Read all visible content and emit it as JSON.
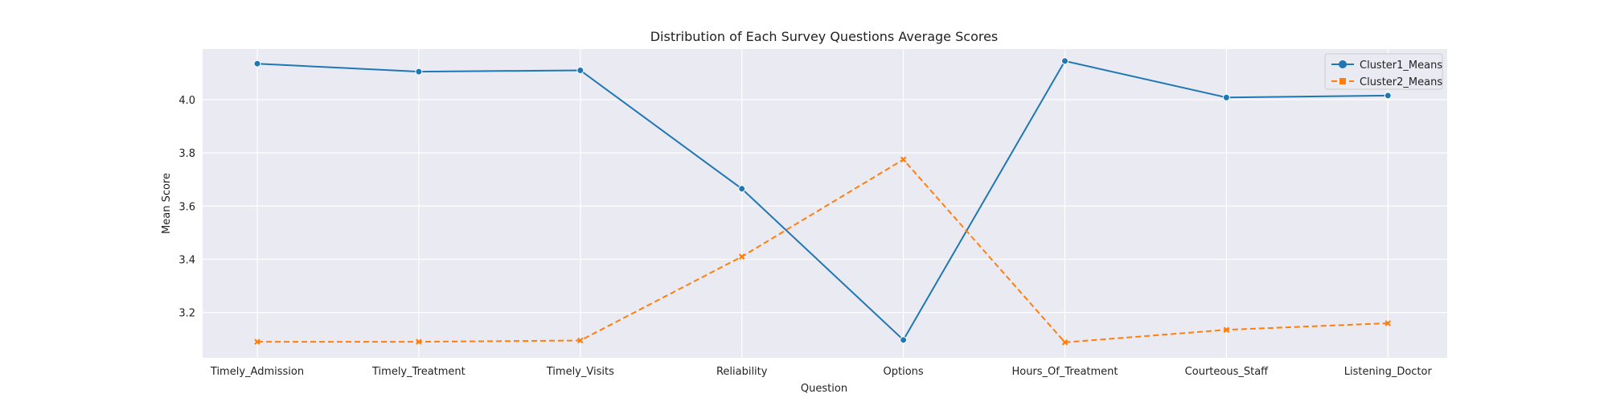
{
  "chart_data": {
    "type": "line",
    "title": "Distribution of Each Survey Questions Average Scores",
    "xlabel": "Question",
    "ylabel": "Mean Score",
    "categories": [
      "Timely_Admission",
      "Timely_Treatment",
      "Timely_Visits",
      "Reliability",
      "Options",
      "Hours_Of_Treatment",
      "Courteous_Staff",
      "Listening_Doctor"
    ],
    "ylim": [
      3.03,
      4.19
    ],
    "yticks": [
      3.2,
      3.4,
      3.6,
      3.8,
      4.0
    ],
    "ytick_labels": [
      "3.2",
      "3.4",
      "3.6",
      "3.8",
      "4.0"
    ],
    "grid": true,
    "legend_position": "top-right",
    "series": [
      {
        "name": "Cluster1_Means",
        "color": "#1f77b4",
        "marker": "circle",
        "linestyle": "solid",
        "values": [
          4.135,
          4.105,
          4.11,
          3.665,
          3.097,
          4.145,
          4.008,
          4.015
        ]
      },
      {
        "name": "Cluster2_Means",
        "color": "#ff7f0e",
        "marker": "x",
        "linestyle": "dashed",
        "values": [
          3.09,
          3.09,
          3.095,
          3.41,
          3.775,
          3.088,
          3.135,
          3.16
        ]
      }
    ]
  }
}
